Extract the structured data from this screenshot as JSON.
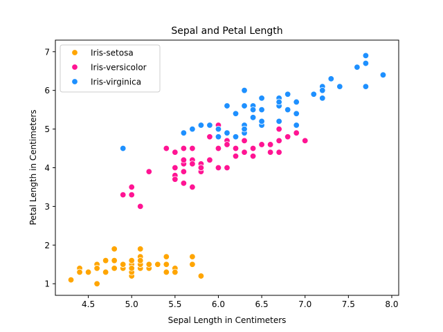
{
  "chart_data": {
    "type": "scatter",
    "title": "Sepal and Petal Length",
    "xlabel": "Sepal Length in Centimeters",
    "ylabel": "Petal Length in Centimeters",
    "xlim": [
      4.12,
      8.08
    ],
    "ylim": [
      0.7,
      7.3
    ],
    "xticks": [
      4.5,
      5.0,
      5.5,
      6.0,
      6.5,
      7.0,
      7.5,
      8.0
    ],
    "xtick_labels": [
      "4.5",
      "5.0",
      "5.5",
      "6.0",
      "6.5",
      "7.0",
      "7.5",
      "8.0"
    ],
    "yticks": [
      1,
      2,
      3,
      4,
      5,
      6,
      7
    ],
    "ytick_labels": [
      "1",
      "2",
      "3",
      "4",
      "5",
      "6",
      "7"
    ],
    "grid": false,
    "legend_position": "top-left",
    "series": [
      {
        "name": "Iris-setosa",
        "color": "#ffa500",
        "points": [
          [
            5.1,
            1.4
          ],
          [
            4.9,
            1.4
          ],
          [
            4.7,
            1.3
          ],
          [
            4.6,
            1.5
          ],
          [
            5.0,
            1.4
          ],
          [
            5.4,
            1.7
          ],
          [
            4.6,
            1.4
          ],
          [
            5.0,
            1.5
          ],
          [
            4.4,
            1.4
          ],
          [
            4.9,
            1.5
          ],
          [
            5.4,
            1.5
          ],
          [
            4.8,
            1.6
          ],
          [
            4.8,
            1.4
          ],
          [
            4.3,
            1.1
          ],
          [
            5.8,
            1.2
          ],
          [
            5.7,
            1.5
          ],
          [
            5.4,
            1.3
          ],
          [
            5.1,
            1.4
          ],
          [
            5.7,
            1.7
          ],
          [
            5.1,
            1.5
          ],
          [
            5.4,
            1.7
          ],
          [
            5.1,
            1.5
          ],
          [
            4.6,
            1.0
          ],
          [
            5.1,
            1.7
          ],
          [
            4.8,
            1.9
          ],
          [
            5.0,
            1.6
          ],
          [
            5.0,
            1.6
          ],
          [
            5.2,
            1.5
          ],
          [
            5.2,
            1.4
          ],
          [
            4.7,
            1.6
          ],
          [
            4.8,
            1.6
          ],
          [
            5.4,
            1.5
          ],
          [
            5.2,
            1.5
          ],
          [
            5.5,
            1.4
          ],
          [
            4.9,
            1.5
          ],
          [
            5.0,
            1.2
          ],
          [
            5.5,
            1.3
          ],
          [
            4.9,
            1.5
          ],
          [
            4.4,
            1.3
          ],
          [
            5.1,
            1.5
          ],
          [
            5.0,
            1.3
          ],
          [
            4.5,
            1.3
          ],
          [
            4.4,
            1.3
          ],
          [
            5.0,
            1.6
          ],
          [
            5.1,
            1.9
          ],
          [
            4.8,
            1.4
          ],
          [
            5.1,
            1.6
          ],
          [
            4.6,
            1.4
          ],
          [
            5.3,
            1.5
          ],
          [
            5.0,
            1.4
          ]
        ]
      },
      {
        "name": "Iris-versicolor",
        "color": "#ff1493",
        "points": [
          [
            7.0,
            4.7
          ],
          [
            6.4,
            4.5
          ],
          [
            6.9,
            4.9
          ],
          [
            5.5,
            4.0
          ],
          [
            6.5,
            4.6
          ],
          [
            5.7,
            4.5
          ],
          [
            6.3,
            4.7
          ],
          [
            4.9,
            3.3
          ],
          [
            6.6,
            4.6
          ],
          [
            5.2,
            3.9
          ],
          [
            5.0,
            3.5
          ],
          [
            5.9,
            4.2
          ],
          [
            6.0,
            4.0
          ],
          [
            6.1,
            4.7
          ],
          [
            5.6,
            3.6
          ],
          [
            6.7,
            4.4
          ],
          [
            5.6,
            4.5
          ],
          [
            5.8,
            4.1
          ],
          [
            6.2,
            4.5
          ],
          [
            5.6,
            3.9
          ],
          [
            5.9,
            4.8
          ],
          [
            6.1,
            4.0
          ],
          [
            6.3,
            4.9
          ],
          [
            6.1,
            4.7
          ],
          [
            6.4,
            4.3
          ],
          [
            6.6,
            4.4
          ],
          [
            6.8,
            4.8
          ],
          [
            6.7,
            5.0
          ],
          [
            6.0,
            4.5
          ],
          [
            5.7,
            3.5
          ],
          [
            5.5,
            3.8
          ],
          [
            5.5,
            3.7
          ],
          [
            5.8,
            3.9
          ],
          [
            6.0,
            5.1
          ],
          [
            5.4,
            4.5
          ],
          [
            6.0,
            4.5
          ],
          [
            6.7,
            4.7
          ],
          [
            6.3,
            4.4
          ],
          [
            5.6,
            4.1
          ],
          [
            5.5,
            4.0
          ],
          [
            5.5,
            4.4
          ],
          [
            6.1,
            4.6
          ],
          [
            5.8,
            4.0
          ],
          [
            5.0,
            3.3
          ],
          [
            5.6,
            4.2
          ],
          [
            5.7,
            4.2
          ],
          [
            5.7,
            4.2
          ],
          [
            6.2,
            4.3
          ],
          [
            5.1,
            3.0
          ],
          [
            5.7,
            4.1
          ]
        ]
      },
      {
        "name": "Iris-virginica",
        "color": "#1e90ff",
        "points": [
          [
            6.3,
            6.0
          ],
          [
            5.8,
            5.1
          ],
          [
            7.1,
            5.9
          ],
          [
            6.3,
            5.6
          ],
          [
            6.5,
            5.8
          ],
          [
            7.6,
            6.6
          ],
          [
            4.9,
            4.5
          ],
          [
            7.3,
            6.3
          ],
          [
            6.7,
            5.8
          ],
          [
            7.2,
            6.1
          ],
          [
            6.5,
            5.1
          ],
          [
            6.4,
            5.3
          ],
          [
            6.8,
            5.5
          ],
          [
            5.7,
            5.0
          ],
          [
            5.8,
            5.1
          ],
          [
            6.4,
            5.3
          ],
          [
            6.5,
            5.5
          ],
          [
            7.7,
            6.7
          ],
          [
            7.7,
            6.9
          ],
          [
            6.0,
            5.0
          ],
          [
            6.9,
            5.7
          ],
          [
            5.6,
            4.9
          ],
          [
            7.7,
            6.7
          ],
          [
            6.3,
            4.9
          ],
          [
            6.7,
            5.7
          ],
          [
            7.2,
            6.0
          ],
          [
            6.2,
            4.8
          ],
          [
            6.1,
            4.9
          ],
          [
            6.4,
            5.6
          ],
          [
            7.2,
            5.8
          ],
          [
            7.4,
            6.1
          ],
          [
            7.9,
            6.4
          ],
          [
            6.4,
            5.6
          ],
          [
            6.3,
            5.1
          ],
          [
            6.1,
            5.6
          ],
          [
            7.7,
            6.1
          ],
          [
            6.3,
            5.6
          ],
          [
            6.4,
            5.5
          ],
          [
            6.0,
            4.8
          ],
          [
            6.9,
            5.4
          ],
          [
            6.7,
            5.6
          ],
          [
            6.9,
            5.1
          ],
          [
            5.8,
            5.1
          ],
          [
            6.8,
            5.9
          ],
          [
            6.7,
            5.7
          ],
          [
            6.7,
            5.2
          ],
          [
            6.3,
            5.0
          ],
          [
            6.5,
            5.2
          ],
          [
            6.2,
            5.4
          ],
          [
            5.9,
            5.1
          ]
        ]
      }
    ]
  }
}
